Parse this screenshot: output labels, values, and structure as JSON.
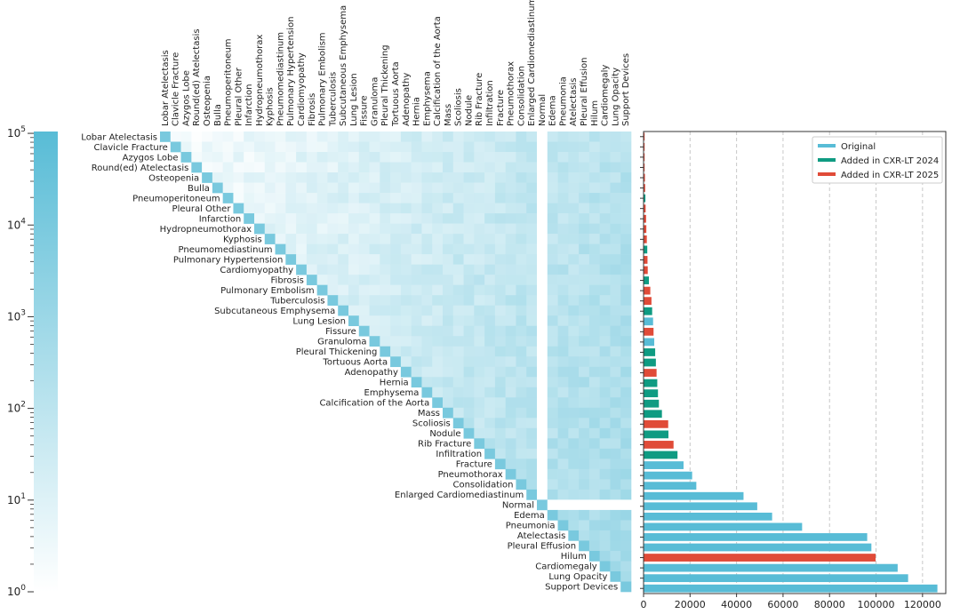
{
  "chart_data": [
    {
      "type": "heatmap",
      "description_scale": "log",
      "colorbar": {
        "scale": "log",
        "range": [
          1,
          100000
        ],
        "tick_labels": [
          "10^0",
          "10^1",
          "10^2",
          "10^3",
          "10^4",
          "10^5"
        ],
        "color_low": "#ffffff",
        "color_high": "#58bcd6"
      },
      "labels": [
        "Lobar Atelectasis",
        "Clavicle Fracture",
        "Azygos Lobe",
        "Round(ed) Atelectasis",
        "Osteopenia",
        "Bulla",
        "Pneumoperitoneum",
        "Pleural Other",
        "Infarction",
        "Hydropneumothorax",
        "Kyphosis",
        "Pneumomediastinum",
        "Pulmonary Hypertension",
        "Cardiomyopathy",
        "Fibrosis",
        "Pulmonary Embolism",
        "Tuberculosis",
        "Subcutaneous Emphysema",
        "Lung Lesion",
        "Fissure",
        "Granuloma",
        "Pleural Thickening",
        "Tortuous Aorta",
        "Adenopathy",
        "Hernia",
        "Emphysema",
        "Calcification of the Aorta",
        "Mass",
        "Scoliosis",
        "Nodule",
        "Rib Fracture",
        "Infiltration",
        "Fracture",
        "Pneumothorax",
        "Consolidation",
        "Enlarged Cardiomediastinum",
        "Normal",
        "Edema",
        "Pneumonia",
        "Atelectasis",
        "Pleural Effusion",
        "Hilum",
        "Cardiomegaly",
        "Lung Opacity",
        "Support Devices"
      ]
    },
    {
      "type": "bar",
      "orientation": "horizontal",
      "categories": [
        "Lobar Atelectasis",
        "Clavicle Fracture",
        "Azygos Lobe",
        "Round(ed) Atelectasis",
        "Osteopenia",
        "Bulla",
        "Pneumoperitoneum",
        "Pleural Other",
        "Infarction",
        "Hydropneumothorax",
        "Kyphosis",
        "Pneumomediastinum",
        "Pulmonary Hypertension",
        "Cardiomyopathy",
        "Fibrosis",
        "Pulmonary Embolism",
        "Tuberculosis",
        "Subcutaneous Emphysema",
        "Lung Lesion",
        "Fissure",
        "Granuloma",
        "Pleural Thickening",
        "Tortuous Aorta",
        "Adenopathy",
        "Hernia",
        "Emphysema",
        "Calcification of the Aorta",
        "Mass",
        "Scoliosis",
        "Nodule",
        "Rib Fracture",
        "Infiltration",
        "Fracture",
        "Pneumothorax",
        "Consolidation",
        "Enlarged Cardiomediastinum",
        "Normal",
        "Edema",
        "Pneumonia",
        "Atelectasis",
        "Pleural Effusion",
        "Hilum",
        "Cardiomegaly",
        "Lung Opacity",
        "Support Devices"
      ],
      "values": [
        150,
        250,
        350,
        450,
        600,
        700,
        800,
        900,
        1100,
        1200,
        1400,
        1600,
        1700,
        1800,
        2300,
        2900,
        3400,
        3700,
        4100,
        4300,
        4600,
        5000,
        5300,
        5600,
        5900,
        6200,
        6600,
        7900,
        10600,
        10700,
        12900,
        14600,
        17200,
        20900,
        22700,
        43000,
        48900,
        55300,
        68200,
        96200,
        98000,
        99800,
        109300,
        113800,
        126400
      ],
      "groups": [
        "Added in CXR-LT 2025",
        "Added in CXR-LT 2025",
        "Added in CXR-LT 2025",
        "Added in CXR-LT 2025",
        "Added in CXR-LT 2025",
        "Added in CXR-LT 2025",
        "Added in CXR-LT 2024",
        "Added in CXR-LT 2025",
        "Added in CXR-LT 2025",
        "Added in CXR-LT 2025",
        "Added in CXR-LT 2025",
        "Added in CXR-LT 2024",
        "Added in CXR-LT 2025",
        "Added in CXR-LT 2025",
        "Added in CXR-LT 2024",
        "Added in CXR-LT 2025",
        "Added in CXR-LT 2025",
        "Added in CXR-LT 2024",
        "Original",
        "Added in CXR-LT 2025",
        "Original",
        "Added in CXR-LT 2024",
        "Added in CXR-LT 2024",
        "Added in CXR-LT 2025",
        "Added in CXR-LT 2024",
        "Added in CXR-LT 2024",
        "Added in CXR-LT 2024",
        "Added in CXR-LT 2024",
        "Added in CXR-LT 2025",
        "Added in CXR-LT 2024",
        "Added in CXR-LT 2025",
        "Added in CXR-LT 2024",
        "Original",
        "Original",
        "Original",
        "Original",
        "Original",
        "Original",
        "Original",
        "Original",
        "Original",
        "Added in CXR-LT 2025",
        "Original",
        "Original",
        "Original"
      ],
      "xlim": [
        0,
        130000
      ],
      "xticks": [
        0,
        20000,
        40000,
        60000,
        80000,
        100000,
        120000
      ],
      "grid": "vertical dashed",
      "legend": {
        "placement": "top-right",
        "entries": [
          {
            "name": "Original",
            "color": "#58bcd6"
          },
          {
            "name": "Added in CXR-LT 2024",
            "color": "#0f9b82"
          },
          {
            "name": "Added in CXR-LT 2025",
            "color": "#e04b38"
          }
        ]
      }
    }
  ]
}
